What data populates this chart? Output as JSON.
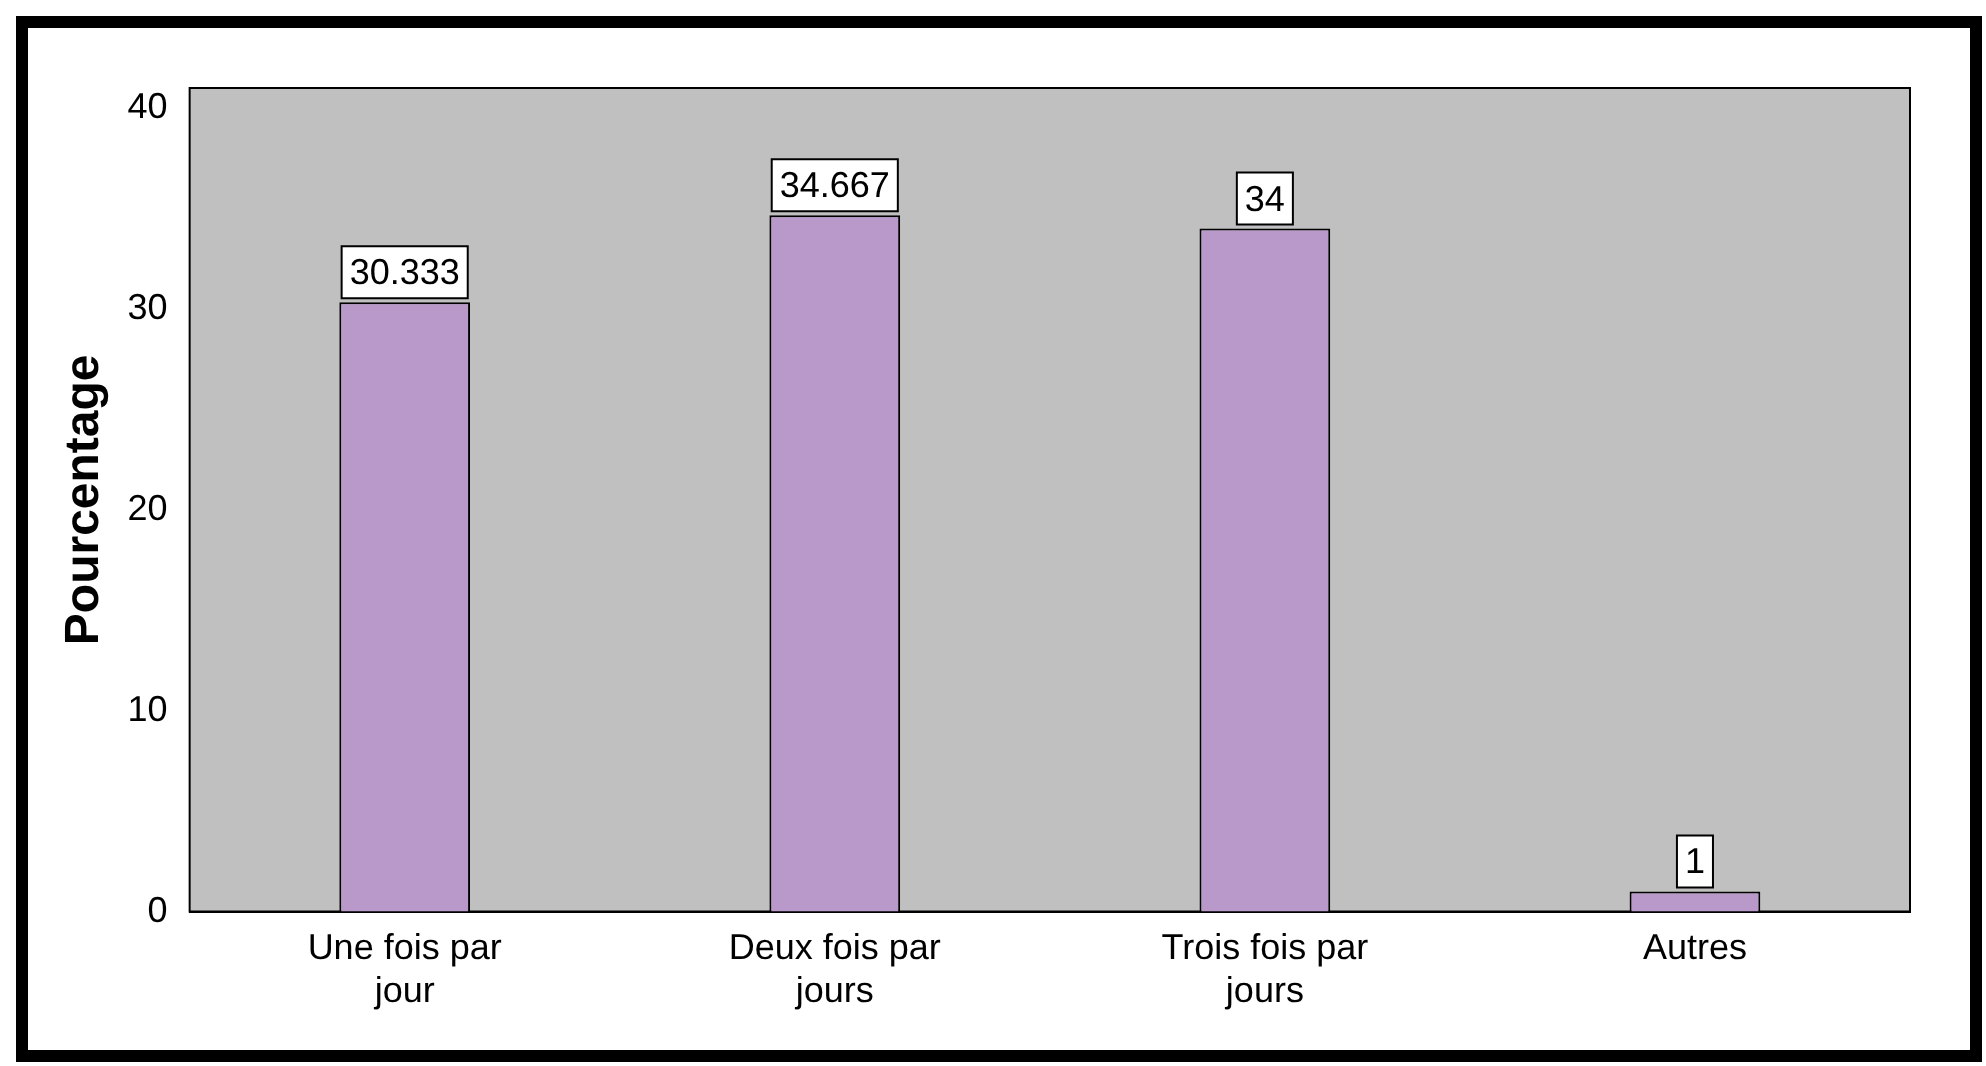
{
  "chart_data": {
    "type": "bar",
    "ylabel": "Pourcentage",
    "categories": [
      "Une fois par jour",
      "Deux fois par jours",
      "Trois fois par jours",
      "Autres"
    ],
    "values": [
      30.333,
      34.667,
      34,
      1
    ],
    "color": "#b899c9",
    "ylim": [
      0,
      41
    ],
    "yticks": [
      0,
      10,
      20,
      30,
      40
    ],
    "grid": false,
    "legend": false,
    "data_labels": true
  }
}
